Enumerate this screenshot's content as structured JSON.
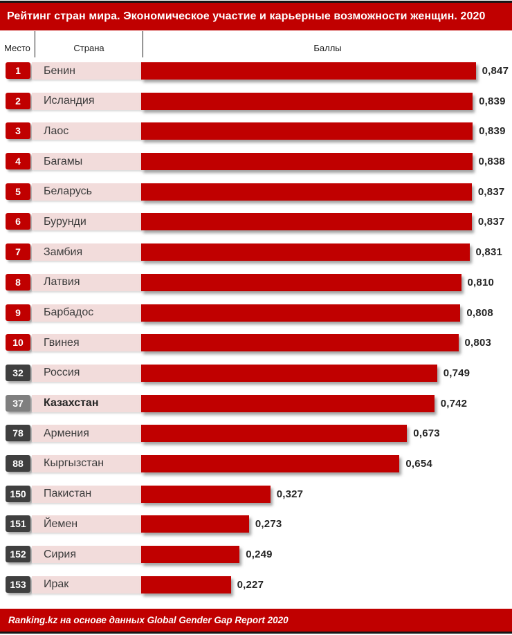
{
  "title": "Рейтинг стран мира. Экономическое участие и карьерные возможности женщин. 2020",
  "columns": {
    "rank": "Место",
    "country": "Страна",
    "score": "Баллы"
  },
  "footer": "Ranking.kz на основе данных Global Gender Gap Report 2020",
  "colors": {
    "red": "#C00000",
    "badge_dark": "#3F3F3F",
    "badge_medium": "#7F7F7F",
    "strip_pink": "#F2DCDB",
    "rule": "#161616",
    "value_text": "#262626"
  },
  "rows": [
    {
      "rank": "1",
      "country": "Бенин",
      "value": "0,847",
      "score": 0.847,
      "badge": "red"
    },
    {
      "rank": "2",
      "country": "Исландия",
      "value": "0,839",
      "score": 0.839,
      "badge": "red"
    },
    {
      "rank": "3",
      "country": "Лаос",
      "value": "0,839",
      "score": 0.839,
      "badge": "red"
    },
    {
      "rank": "4",
      "country": "Багамы",
      "value": "0,838",
      "score": 0.838,
      "badge": "red"
    },
    {
      "rank": "5",
      "country": "Беларусь",
      "value": "0,837",
      "score": 0.837,
      "badge": "red"
    },
    {
      "rank": "6",
      "country": "Бурунди",
      "value": "0,837",
      "score": 0.837,
      "badge": "red"
    },
    {
      "rank": "7",
      "country": "Замбия",
      "value": "0,831",
      "score": 0.831,
      "badge": "red"
    },
    {
      "rank": "8",
      "country": "Латвия",
      "value": "0,810",
      "score": 0.81,
      "badge": "red"
    },
    {
      "rank": "9",
      "country": "Барбадос",
      "value": "0,808",
      "score": 0.808,
      "badge": "red"
    },
    {
      "rank": "10",
      "country": "Гвинея",
      "value": "0,803",
      "score": 0.803,
      "badge": "red"
    },
    {
      "rank": "32",
      "country": "Россия",
      "value": "0,749",
      "score": 0.749,
      "badge": "dark"
    },
    {
      "rank": "37",
      "country": "Казахстан",
      "value": "0,742",
      "score": 0.742,
      "badge": "medium",
      "emphasis": true
    },
    {
      "rank": "78",
      "country": "Армения",
      "value": "0,673",
      "score": 0.673,
      "badge": "dark"
    },
    {
      "rank": "88",
      "country": "Кыргызстан",
      "value": "0,654",
      "score": 0.654,
      "badge": "dark"
    },
    {
      "rank": "150",
      "country": "Пакистан",
      "value": "0,327",
      "score": 0.327,
      "badge": "dark"
    },
    {
      "rank": "151",
      "country": "Йемен",
      "value": "0,273",
      "score": 0.273,
      "badge": "dark"
    },
    {
      "rank": "152",
      "country": "Сирия",
      "value": "0,249",
      "score": 0.249,
      "badge": "dark"
    },
    {
      "rank": "153",
      "country": "Ирак",
      "value": "0,227",
      "score": 0.227,
      "badge": "dark"
    }
  ],
  "chart_data": {
    "type": "bar",
    "orientation": "horizontal",
    "title": "Рейтинг стран мира. Экономическое участие и карьерные возможности женщин. 2020",
    "categories": [
      "Бенин",
      "Исландия",
      "Лаос",
      "Багамы",
      "Беларусь",
      "Бурунди",
      "Замбия",
      "Латвия",
      "Барбадос",
      "Гвинея",
      "Россия",
      "Казахстан",
      "Армения",
      "Кыргызстан",
      "Пакистан",
      "Йемен",
      "Сирия",
      "Ирак"
    ],
    "ranks": [
      1,
      2,
      3,
      4,
      5,
      6,
      7,
      8,
      9,
      10,
      32,
      37,
      78,
      88,
      150,
      151,
      152,
      153
    ],
    "values": [
      0.847,
      0.839,
      0.839,
      0.838,
      0.837,
      0.837,
      0.831,
      0.81,
      0.808,
      0.803,
      0.749,
      0.742,
      0.673,
      0.654,
      0.327,
      0.273,
      0.249,
      0.227
    ],
    "value_labels": [
      "0,847",
      "0,839",
      "0,839",
      "0,838",
      "0,837",
      "0,837",
      "0,831",
      "0,810",
      "0,808",
      "0,803",
      "0,749",
      "0,742",
      "0,673",
      "0,654",
      "0,327",
      "0,273",
      "0,249",
      "0,227"
    ],
    "xlabel": "Баллы",
    "ylabel": "Страна",
    "xlim": [
      0,
      0.9
    ],
    "grid": false,
    "legend": false,
    "bar_color": "#C00000",
    "highlighted_category": "Казахстан",
    "source": "Ranking.kz на основе данных Global Gender Gap Report 2020"
  }
}
